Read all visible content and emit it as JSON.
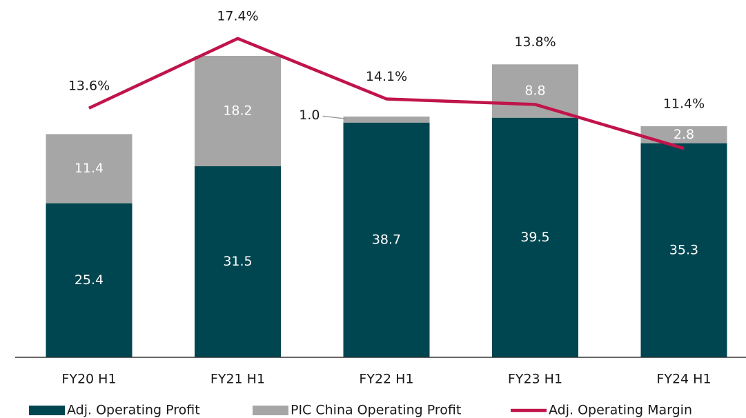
{
  "chart_data": {
    "type": "bar",
    "categories": [
      "FY20 H1",
      "FY21 H1",
      "FY22 H1",
      "FY23 H1",
      "FY24 H1"
    ],
    "series": [
      {
        "name": "Adj. Operating Profit",
        "color": "#004650",
        "values": [
          25.4,
          31.5,
          38.7,
          39.5,
          35.3
        ],
        "value_labels": [
          "25.4",
          "31.5",
          "38.7",
          "39.5",
          "35.3"
        ]
      },
      {
        "name": "PIC China Operating Profit",
        "color": "#a6a6a6",
        "values": [
          11.4,
          18.2,
          1.0,
          8.8,
          2.8
        ],
        "value_labels": [
          "11.4",
          "18.2",
          "1.0",
          "8.8",
          "2.8"
        ]
      },
      {
        "name": "Adj. Operating Margin",
        "type": "line",
        "axis": "y2",
        "color": "#c0144a",
        "values": [
          13.6,
          17.4,
          14.1,
          13.8,
          11.4
        ],
        "value_labels": [
          "13.6%",
          "17.4%",
          "14.1%",
          "13.8%",
          "11.4%"
        ]
      }
    ],
    "stacked": true,
    "ylim": [
      0,
      58
    ],
    "y2lim": [
      0,
      19.2
    ]
  }
}
